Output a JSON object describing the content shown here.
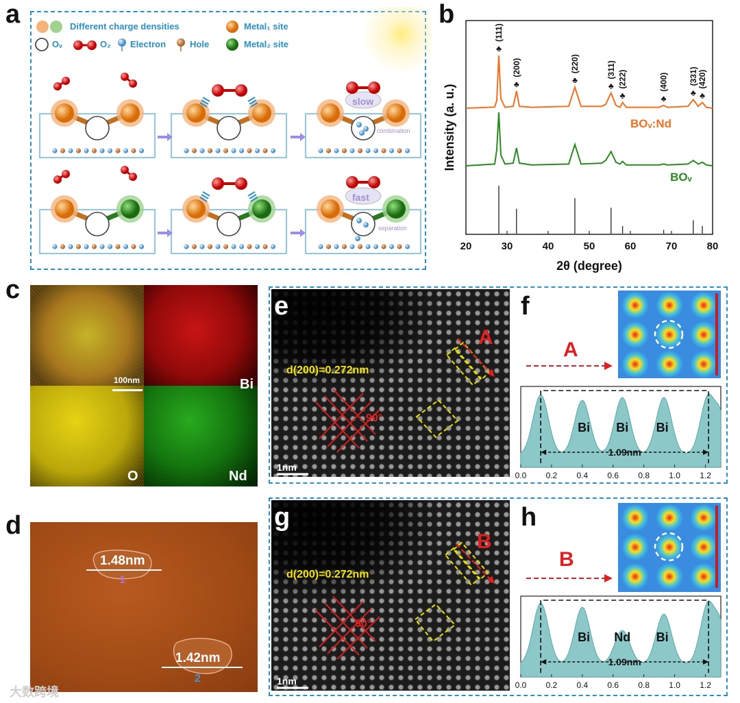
{
  "panels": {
    "a": "a",
    "b": "b",
    "c": "c",
    "d": "d",
    "e": "e",
    "f": "f",
    "g": "g",
    "h": "h"
  },
  "panel_a": {
    "legend": {
      "charge": "Different charge densities",
      "metal1": "Metal₁ site",
      "ov": "Oᵥ",
      "o2": "O₂",
      "electron": "Electron",
      "hole": "Hole",
      "metal2": "Metal₂ site"
    },
    "slow": "slow",
    "fast": "fast",
    "combination": "combination",
    "separation": "separation"
  },
  "panel_c": {
    "scale": "100nm",
    "elements": [
      "Bi",
      "O",
      "Nd"
    ]
  },
  "panel_d": {
    "height1": "1.48nm",
    "height2": "1.42nm",
    "marker1": "1",
    "marker2": "2"
  },
  "panel_e": {
    "d_spacing": "d(200)=0.272nm",
    "angle": "90°",
    "line_label": "A",
    "scale": "1nm"
  },
  "panel_g": {
    "d_spacing": "d(200)=0.272nm",
    "angle": "90°",
    "line_label": "B",
    "scale": "1nm"
  },
  "panel_f": {
    "line_label": "A",
    "peak_labels": [
      "Bi",
      "Bi",
      "Bi"
    ],
    "distance": "1.09nm",
    "x_ticks": [
      "0.0",
      "0.2",
      "0.4",
      "0.6",
      "0.8",
      "1.0",
      "1.2"
    ]
  },
  "panel_h": {
    "line_label": "B",
    "peak_labels": [
      "Bi",
      "Nd",
      "Bi"
    ],
    "distance": "1.09nm",
    "x_ticks": [
      "0.0",
      "0.2",
      "0.4",
      "0.6",
      "0.8",
      "1.0",
      "1.2"
    ]
  },
  "chart_data": {
    "type": "line",
    "title": "",
    "xlabel": "2θ (degree)",
    "ylabel": "Intensity (a. u.)",
    "xlim": [
      20,
      80
    ],
    "x_ticks": [
      20,
      30,
      40,
      50,
      60,
      70,
      80
    ],
    "series": [
      {
        "name": "BOᵥ:Nd",
        "color": "#f07020",
        "x": [
          20,
          27.0,
          27.5,
          28.0,
          28.5,
          29.5,
          31.5,
          32.3,
          33,
          36,
          45,
          46.5,
          48,
          53,
          54,
          55.3,
          56.5,
          57.5,
          58.1,
          59,
          67,
          68.1,
          69,
          74,
          75.3,
          76.5,
          77.5,
          78.5,
          80
        ],
        "y": [
          0,
          1.2,
          8,
          55,
          10,
          1,
          2,
          18,
          2,
          1,
          2,
          22,
          2,
          2,
          4,
          16,
          3,
          1,
          6,
          1,
          1,
          3,
          1,
          2,
          9,
          2,
          6,
          1,
          0
        ]
      },
      {
        "name": "BOᵥ",
        "color": "#2a8a20",
        "x": [
          20,
          27.0,
          27.5,
          28.0,
          28.5,
          29.5,
          31.5,
          32.3,
          33,
          36,
          45,
          46.5,
          48,
          53,
          54,
          55.3,
          56.5,
          57.5,
          58.1,
          59,
          67,
          68.1,
          69,
          74,
          75.3,
          76.5,
          77.5,
          78.5,
          80
        ],
        "y": [
          0,
          2,
          18,
          60,
          12,
          2,
          3,
          20,
          3,
          1,
          2,
          24,
          2,
          3,
          6,
          16,
          4,
          2,
          5,
          1,
          1,
          2,
          1,
          2,
          6,
          2,
          4,
          1,
          0
        ]
      },
      {
        "name": "reference",
        "color": "#333333",
        "x": [
          28.0,
          32.3,
          46.5,
          55.3,
          58.1,
          68.1,
          75.3,
          77.5
        ],
        "y": [
          100,
          52,
          74,
          54,
          16,
          8,
          28,
          16
        ]
      }
    ],
    "peak_labels": [
      {
        "hkl": "(111)",
        "x": 28.0
      },
      {
        "hkl": "(200)",
        "x": 32.3
      },
      {
        "hkl": "(220)",
        "x": 46.5
      },
      {
        "hkl": "(311)",
        "x": 55.3
      },
      {
        "hkl": "(222)",
        "x": 58.1
      },
      {
        "hkl": "(400)",
        "x": 68.1
      },
      {
        "hkl": "(331)",
        "x": 75.3
      },
      {
        "hkl": "(420)",
        "x": 77.5
      }
    ],
    "peak_marker": "♣"
  },
  "watermark": "大数跨境"
}
